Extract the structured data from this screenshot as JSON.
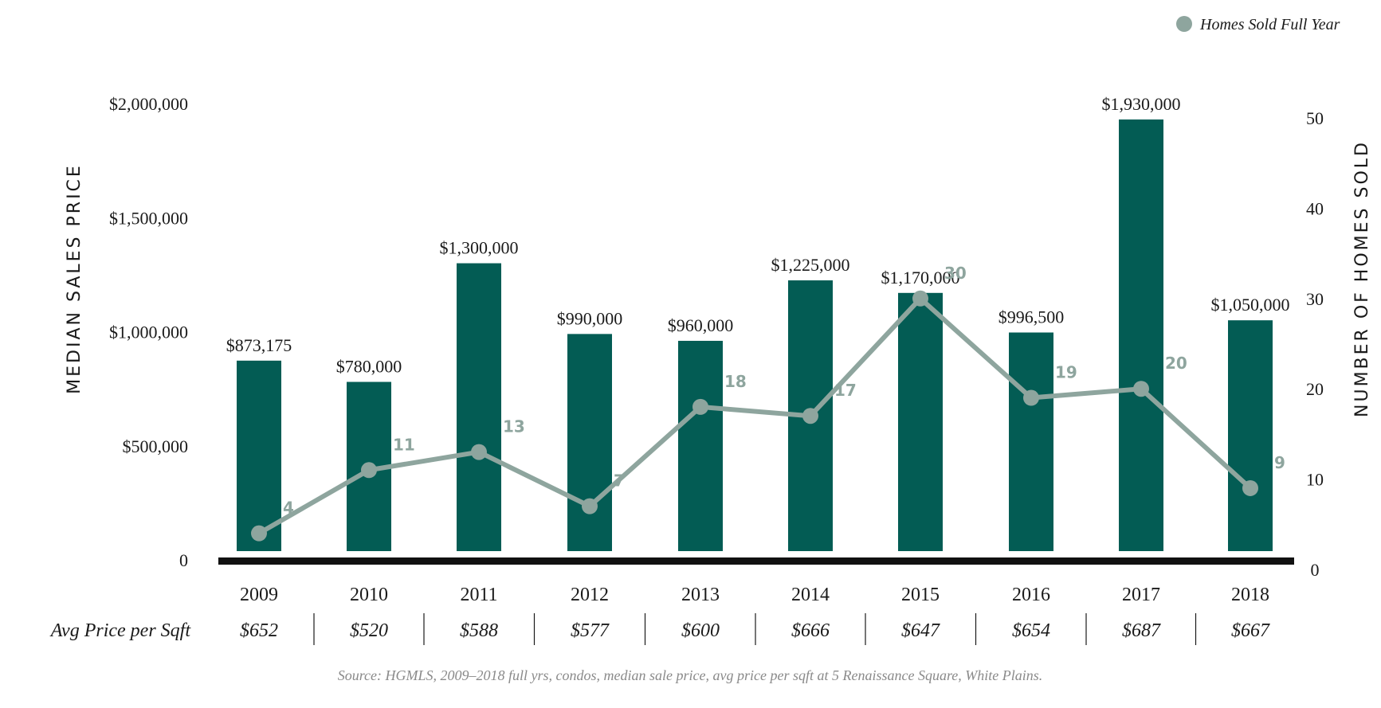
{
  "colors": {
    "bar": "#035c54",
    "line": "#8ea59e",
    "baseline": "#111111",
    "text": "#1a1a1a",
    "muted": "#8a8a8a"
  },
  "legend": {
    "label": "Homes Sold Full Year",
    "icon": "circle-marker-icon"
  },
  "axes": {
    "left_title": "MEDIAN SALES PRICE",
    "right_title": "NUMBER OF HOMES SOLD",
    "left_ticks": [
      "0",
      "$500,000",
      "$1,000,000",
      "$1,500,000",
      "$2,000,000"
    ],
    "right_ticks": [
      "0",
      "10",
      "20",
      "30",
      "40",
      "50"
    ]
  },
  "sqft_row_label": "Avg Price per Sqft",
  "source": "Source: HGMLS, 2009–2018 full yrs, condos, median sale price, avg price per sqft at 5 Renaissance Square, White Plains.",
  "chart_data": {
    "type": "bar",
    "categories": [
      "2009",
      "2010",
      "2011",
      "2012",
      "2013",
      "2014",
      "2015",
      "2016",
      "2017",
      "2018"
    ],
    "series": [
      {
        "type": "bar",
        "axis": "left",
        "values": [
          873175,
          780000,
          1300000,
          990000,
          960000,
          1225000,
          1170000,
          996500,
          1930000,
          1050000
        ],
        "labels": [
          "$873,175",
          "$780,000",
          "$1,300,000",
          "$990,000",
          "$960,000",
          "$1,225,000",
          "$1,170,000",
          "$996,500",
          "$1,930,000",
          "$1,050,000"
        ]
      },
      {
        "name": "Homes Sold Full Year",
        "type": "line",
        "axis": "right",
        "values": [
          4,
          11,
          13,
          7,
          18,
          17,
          30,
          19,
          20,
          9
        ]
      }
    ],
    "avg_price_per_sqft": [
      "$652",
      "$520",
      "$588",
      "$577",
      "$600",
      "$666",
      "$647",
      "$654",
      "$687",
      "$667"
    ],
    "ylabel": "MEDIAN SALES PRICE",
    "y2label": "NUMBER OF HOMES SOLD",
    "ylim": [
      0,
      2000000
    ],
    "y2lim": [
      0,
      50
    ],
    "grid": false,
    "legend_position": "top-right"
  }
}
